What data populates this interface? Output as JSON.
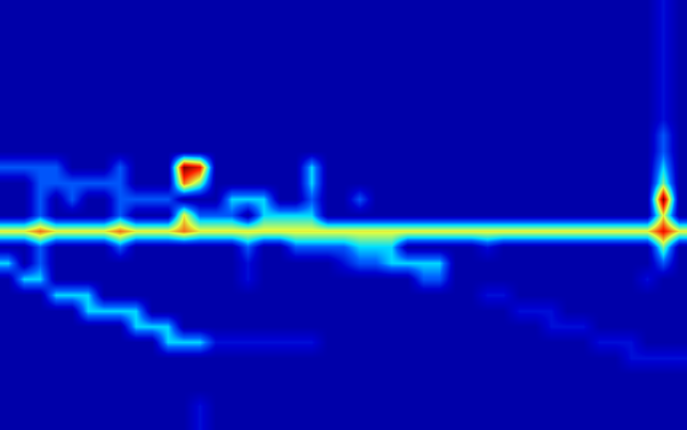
{
  "chart_data": {
    "type": "heatmap",
    "tick_labels": false,
    "zlim": [
      0,
      9
    ],
    "cells": [
      [
        1,
        1,
        1,
        1,
        1,
        1,
        1,
        1,
        1,
        1,
        1,
        1,
        1,
        1,
        1,
        1,
        1,
        1,
        1,
        1,
        1,
        1,
        1,
        1,
        1,
        1,
        1,
        1,
        1,
        1,
        1,
        1,
        1,
        1,
        1,
        1,
        1,
        1,
        1,
        1,
        1,
        2,
        1
      ],
      [
        1,
        1,
        1,
        1,
        1,
        1,
        1,
        1,
        1,
        1,
        1,
        1,
        1,
        1,
        1,
        1,
        1,
        1,
        1,
        1,
        1,
        1,
        1,
        1,
        1,
        1,
        1,
        1,
        1,
        1,
        1,
        1,
        1,
        1,
        1,
        1,
        1,
        1,
        1,
        1,
        1,
        2,
        1
      ],
      [
        1,
        1,
        1,
        1,
        1,
        1,
        1,
        1,
        1,
        1,
        1,
        1,
        1,
        1,
        1,
        1,
        1,
        1,
        1,
        1,
        1,
        1,
        1,
        1,
        1,
        1,
        1,
        1,
        1,
        1,
        1,
        1,
        1,
        1,
        1,
        1,
        1,
        1,
        1,
        1,
        1,
        2,
        1
      ],
      [
        1,
        1,
        1,
        1,
        1,
        1,
        1,
        1,
        1,
        1,
        1,
        1,
        1,
        1,
        1,
        1,
        1,
        1,
        1,
        1,
        1,
        1,
        1,
        1,
        1,
        1,
        1,
        1,
        1,
        1,
        1,
        1,
        1,
        1,
        1,
        1,
        1,
        1,
        1,
        1,
        1,
        2,
        1
      ],
      [
        1,
        1,
        1,
        1,
        1,
        1,
        1,
        1,
        1,
        1,
        1,
        1,
        1,
        1,
        1,
        1,
        1,
        1,
        1,
        1,
        1,
        1,
        1,
        1,
        1,
        1,
        1,
        1,
        1,
        1,
        1,
        1,
        1,
        1,
        1,
        1,
        1,
        1,
        1,
        1,
        1,
        2,
        1
      ],
      [
        1,
        1,
        1,
        1,
        1,
        1,
        1,
        1,
        1,
        1,
        1,
        1,
        1,
        1,
        1,
        1,
        1,
        1,
        1,
        1,
        1,
        1,
        1,
        1,
        1,
        1,
        1,
        1,
        1,
        1,
        1,
        1,
        1,
        1,
        1,
        1,
        1,
        1,
        1,
        1,
        1,
        2,
        1
      ],
      [
        1,
        1,
        1,
        1,
        1,
        1,
        1,
        1,
        1,
        1,
        1,
        1,
        1,
        1,
        1,
        1,
        1,
        1,
        1,
        1,
        1,
        1,
        1,
        1,
        1,
        1,
        1,
        1,
        1,
        1,
        1,
        1,
        1,
        1,
        1,
        1,
        1,
        1,
        1,
        1,
        1,
        2,
        1
      ],
      [
        1,
        1,
        1,
        1,
        1,
        1,
        1,
        1,
        1,
        1,
        1,
        1,
        1,
        1,
        1,
        1,
        1,
        1,
        1,
        1,
        1,
        1,
        1,
        1,
        1,
        1,
        1,
        1,
        1,
        1,
        1,
        1,
        1,
        1,
        1,
        1,
        1,
        1,
        1,
        1,
        1,
        2,
        1
      ],
      [
        1,
        1,
        1,
        1,
        1,
        1,
        1,
        1,
        1,
        1,
        1,
        1,
        1,
        1,
        1,
        1,
        1,
        1,
        1,
        1,
        1,
        1,
        1,
        1,
        1,
        1,
        1,
        1,
        1,
        1,
        1,
        1,
        1,
        1,
        1,
        1,
        1,
        1,
        1,
        1,
        1,
        3,
        1
      ],
      [
        1,
        1,
        1,
        1,
        1,
        1,
        1,
        1,
        1,
        1,
        1,
        1,
        1,
        1,
        1,
        1,
        1,
        1,
        1,
        1,
        1,
        1,
        1,
        1,
        1,
        1,
        1,
        1,
        1,
        1,
        1,
        1,
        1,
        1,
        1,
        1,
        1,
        1,
        1,
        1,
        1,
        3,
        1
      ],
      [
        3,
        3,
        3,
        3,
        1,
        1,
        1,
        3,
        1,
        1,
        1,
        9,
        8,
        1,
        1,
        1,
        1,
        1,
        1,
        4,
        1,
        1,
        1,
        1,
        1,
        1,
        1,
        1,
        1,
        1,
        1,
        1,
        1,
        1,
        1,
        1,
        1,
        1,
        1,
        1,
        1,
        4,
        1
      ],
      [
        1,
        1,
        3,
        3,
        3,
        3,
        3,
        3,
        1,
        1,
        1,
        7,
        5,
        1,
        1,
        1,
        1,
        1,
        1,
        4,
        1,
        1,
        1,
        1,
        1,
        1,
        1,
        1,
        1,
        1,
        1,
        1,
        1,
        1,
        1,
        1,
        1,
        1,
        1,
        1,
        1,
        5,
        1
      ],
      [
        1,
        1,
        3,
        1,
        3,
        1,
        1,
        3,
        3,
        3,
        3,
        1,
        1,
        1,
        4,
        4,
        4,
        1,
        1,
        3,
        1,
        1,
        3,
        1,
        1,
        1,
        1,
        1,
        1,
        1,
        1,
        1,
        1,
        1,
        1,
        1,
        1,
        1,
        1,
        1,
        1,
        9,
        1
      ],
      [
        1,
        1,
        3,
        1,
        1,
        1,
        1,
        3,
        1,
        1,
        1,
        6,
        3,
        3,
        3,
        1,
        4,
        4,
        4,
        4,
        1,
        1,
        1,
        1,
        1,
        1,
        1,
        1,
        1,
        1,
        1,
        1,
        1,
        1,
        1,
        1,
        1,
        1,
        1,
        1,
        1,
        6,
        1
      ],
      [
        6,
        6,
        7,
        6,
        6,
        6,
        6,
        7,
        6,
        6,
        6,
        7,
        6,
        6,
        6,
        6,
        6,
        6,
        6,
        6,
        6,
        6,
        6,
        6,
        6,
        6,
        6,
        6,
        6,
        6,
        6,
        6,
        6,
        6,
        6,
        6,
        6,
        6,
        6,
        6,
        6,
        8,
        6
      ],
      [
        1,
        1,
        3,
        1,
        1,
        1,
        1,
        3,
        1,
        1,
        1,
        1,
        1,
        1,
        1,
        3,
        1,
        1,
        3,
        3,
        3,
        3,
        4,
        4,
        4,
        1,
        1,
        1,
        1,
        1,
        2,
        1,
        1,
        1,
        1,
        1,
        1,
        1,
        1,
        1,
        1,
        5,
        1
      ],
      [
        4,
        1,
        3,
        1,
        1,
        1,
        1,
        1,
        1,
        1,
        1,
        1,
        1,
        1,
        1,
        2,
        1,
        1,
        1,
        1,
        1,
        2,
        3,
        3,
        4,
        4,
        4,
        4,
        1,
        1,
        1,
        1,
        1,
        1,
        1,
        1,
        1,
        1,
        1,
        1,
        1,
        3,
        1
      ],
      [
        1,
        4,
        4,
        1,
        1,
        1,
        1,
        1,
        1,
        1,
        1,
        1,
        1,
        1,
        1,
        2,
        1,
        1,
        1,
        1,
        1,
        1,
        1,
        1,
        1,
        1,
        3,
        3,
        1,
        1,
        1,
        1,
        1,
        1,
        1,
        1,
        1,
        1,
        1,
        1,
        2,
        1,
        1
      ],
      [
        1,
        1,
        1,
        4,
        4,
        4,
        1,
        1,
        1,
        1,
        1,
        1,
        1,
        1,
        1,
        1,
        1,
        1,
        1,
        1,
        1,
        1,
        1,
        1,
        1,
        1,
        1,
        1,
        1,
        1,
        2,
        2,
        1,
        1,
        1,
        1,
        1,
        1,
        1,
        1,
        1,
        1,
        1
      ],
      [
        1,
        1,
        1,
        1,
        1,
        4,
        4,
        4,
        4,
        1,
        1,
        1,
        1,
        1,
        1,
        1,
        1,
        1,
        1,
        1,
        1,
        1,
        1,
        1,
        1,
        1,
        1,
        1,
        1,
        1,
        1,
        1,
        2,
        2,
        2,
        1,
        1,
        1,
        1,
        1,
        1,
        1,
        1
      ],
      [
        1,
        1,
        1,
        1,
        1,
        1,
        1,
        1,
        4,
        4,
        4,
        1,
        1,
        1,
        1,
        1,
        1,
        1,
        1,
        1,
        1,
        1,
        1,
        1,
        1,
        1,
        1,
        1,
        1,
        1,
        1,
        1,
        1,
        1,
        2,
        2,
        2,
        1,
        1,
        1,
        1,
        1,
        1
      ],
      [
        1,
        1,
        1,
        1,
        1,
        1,
        1,
        1,
        1,
        1,
        4,
        4,
        4,
        2,
        2,
        2,
        2,
        2,
        2,
        2,
        1,
        1,
        1,
        1,
        1,
        1,
        1,
        1,
        1,
        1,
        1,
        1,
        1,
        1,
        1,
        1,
        1,
        2,
        2,
        2,
        1,
        1,
        1
      ],
      [
        1,
        1,
        1,
        1,
        1,
        1,
        1,
        1,
        1,
        1,
        1,
        1,
        1,
        1,
        1,
        1,
        1,
        1,
        1,
        1,
        1,
        1,
        1,
        1,
        1,
        1,
        1,
        1,
        1,
        1,
        1,
        1,
        1,
        1,
        1,
        1,
        1,
        1,
        1,
        2,
        2,
        2,
        2
      ],
      [
        1,
        1,
        1,
        1,
        1,
        1,
        1,
        1,
        1,
        1,
        1,
        1,
        1,
        1,
        1,
        1,
        1,
        1,
        1,
        1,
        1,
        1,
        1,
        1,
        1,
        1,
        1,
        1,
        1,
        1,
        1,
        1,
        1,
        1,
        1,
        1,
        1,
        1,
        1,
        1,
        1,
        1,
        1
      ],
      [
        1,
        1,
        1,
        1,
        1,
        1,
        1,
        1,
        1,
        1,
        1,
        1,
        1,
        1,
        1,
        1,
        1,
        1,
        1,
        1,
        1,
        1,
        1,
        1,
        1,
        1,
        1,
        1,
        1,
        1,
        1,
        1,
        1,
        1,
        1,
        1,
        1,
        1,
        1,
        1,
        1,
        1,
        1
      ],
      [
        1,
        1,
        1,
        1,
        1,
        1,
        1,
        1,
        1,
        1,
        1,
        1,
        2,
        1,
        1,
        1,
        1,
        1,
        1,
        1,
        1,
        1,
        1,
        1,
        1,
        1,
        1,
        1,
        1,
        1,
        1,
        1,
        1,
        1,
        1,
        1,
        1,
        1,
        1,
        1,
        1,
        1,
        1
      ],
      [
        1,
        1,
        1,
        1,
        1,
        1,
        1,
        1,
        1,
        1,
        1,
        1,
        2,
        1,
        1,
        1,
        1,
        1,
        1,
        1,
        1,
        1,
        1,
        1,
        1,
        1,
        1,
        1,
        1,
        1,
        1,
        1,
        1,
        1,
        1,
        1,
        1,
        1,
        1,
        1,
        1,
        1,
        1
      ]
    ]
  }
}
